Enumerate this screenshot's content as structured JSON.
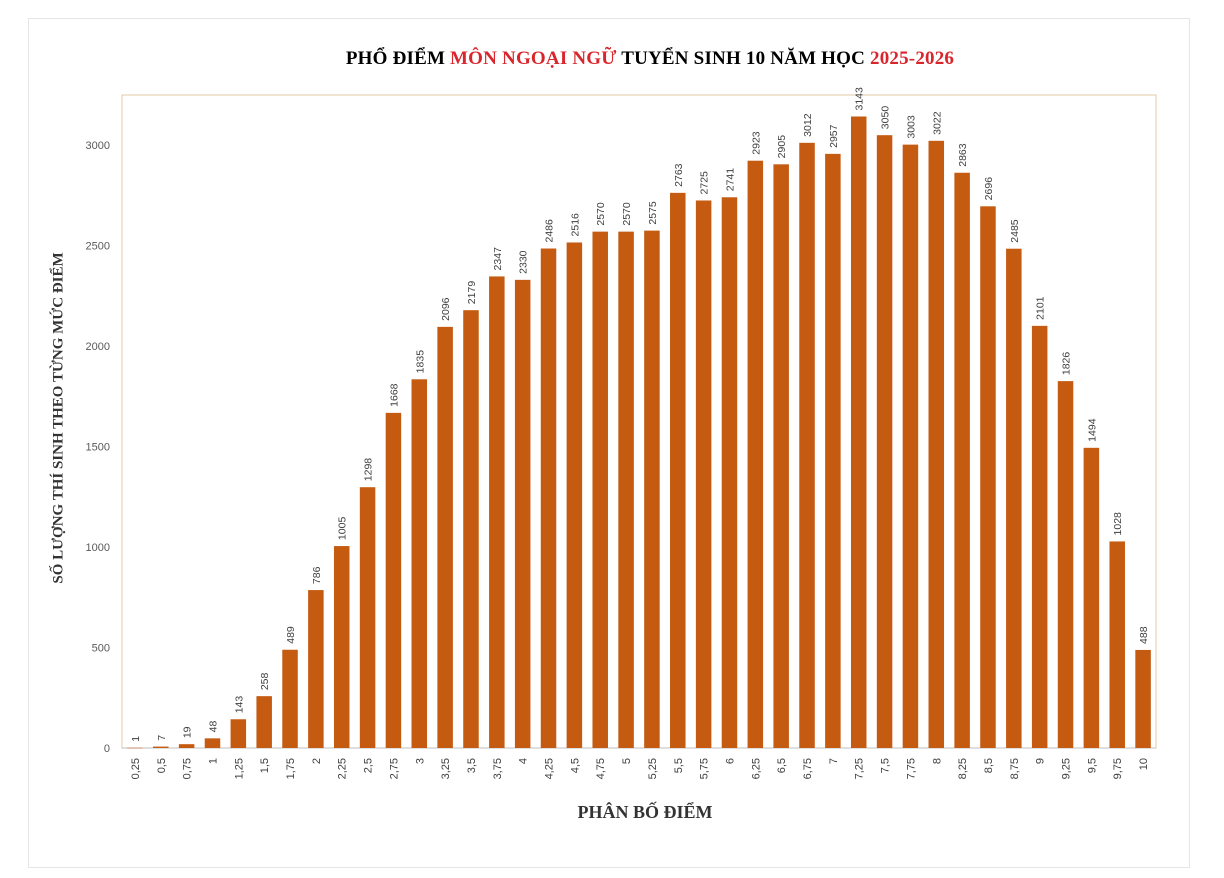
{
  "chart_data": {
    "type": "bar",
    "title_parts": [
      "PHỔ ĐIỂM ",
      "MÔN NGOẠI NGỮ",
      " TUYỂN SINH 10 NĂM HỌC ",
      "2025-2026"
    ],
    "xlabel": "PHÂN BỐ ĐIỂM",
    "ylabel": "SỐ LƯỢNG THÍ SINH THEO TỪNG MỨC ĐIỂM",
    "categories": [
      "0,25",
      "0,5",
      "0,75",
      "1",
      "1,25",
      "1,5",
      "1,75",
      "2",
      "2,25",
      "2,5",
      "2,75",
      "3",
      "3,25",
      "3,5",
      "3,75",
      "4",
      "4,25",
      "4,5",
      "4,75",
      "5",
      "5,25",
      "5,5",
      "5,75",
      "6",
      "6,25",
      "6,5",
      "6,75",
      "7",
      "7,25",
      "7,5",
      "7,75",
      "8",
      "8,25",
      "8,5",
      "8,75",
      "9",
      "9,25",
      "9,5",
      "9,75",
      "10"
    ],
    "values": [
      1,
      7,
      19,
      48,
      143,
      258,
      489,
      786,
      1005,
      1298,
      1668,
      1835,
      2096,
      2179,
      2347,
      2330,
      2486,
      2516,
      2570,
      2570,
      2575,
      2763,
      2725,
      2741,
      2923,
      2905,
      3012,
      2957,
      3143,
      3050,
      3003,
      3022,
      2863,
      2696,
      2485,
      2101,
      1826,
      1494,
      1028,
      488
    ],
    "yticks": [
      0,
      500,
      1000,
      1500,
      2000,
      2500,
      3000
    ],
    "ylim": [
      0,
      3250
    ],
    "grid": false,
    "legend": "none",
    "bar_color": "#c55a11",
    "highlight_color": "#d8262c"
  }
}
